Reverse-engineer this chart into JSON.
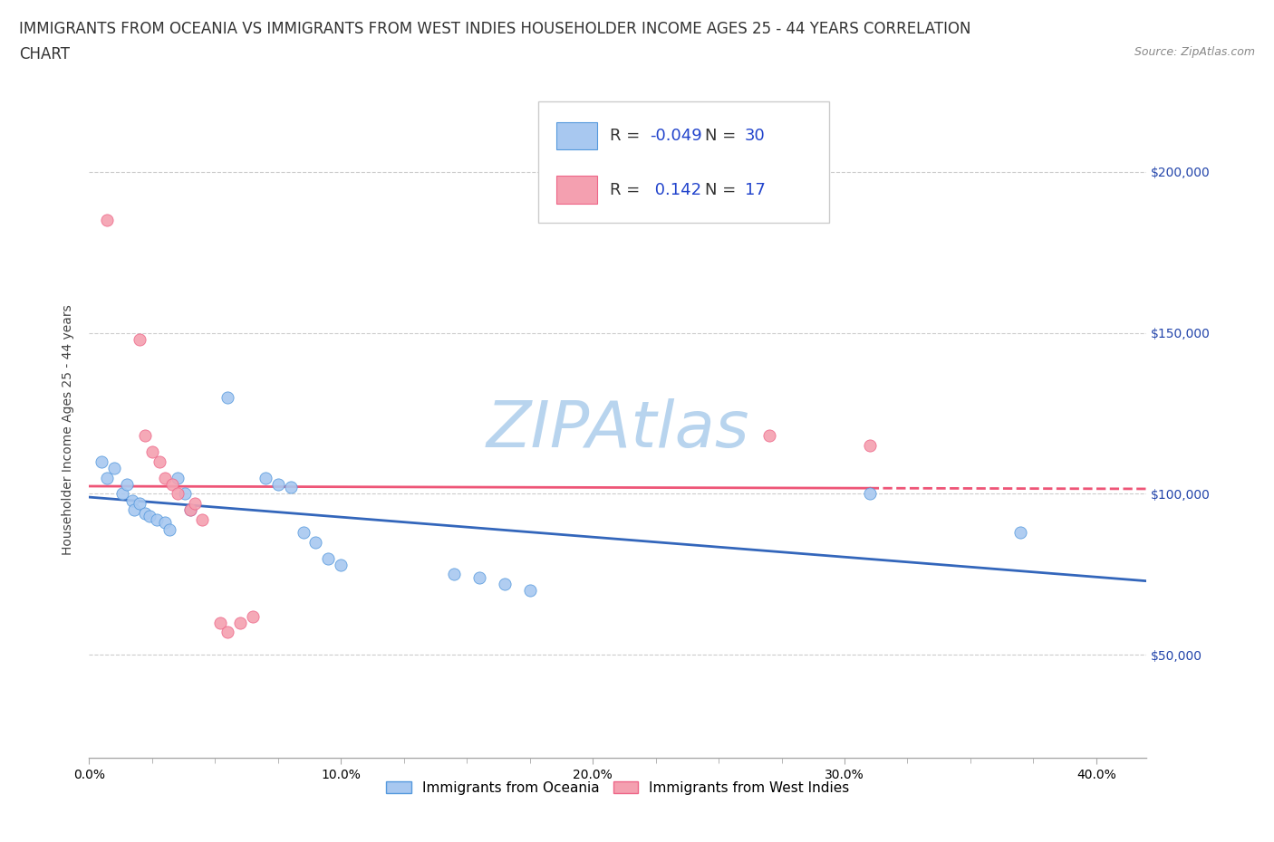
{
  "title_line1": "IMMIGRANTS FROM OCEANIA VS IMMIGRANTS FROM WEST INDIES HOUSEHOLDER INCOME AGES 25 - 44 YEARS CORRELATION",
  "title_line2": "CHART",
  "source_text": "Source: ZipAtlas.com",
  "ylabel": "Householder Income Ages 25 - 44 years",
  "xlabel_ticks": [
    "0.0%",
    "10.0%",
    "20.0%",
    "30.0%",
    "40.0%"
  ],
  "ytick_labels": [
    "$50,000",
    "$100,000",
    "$150,000",
    "$200,000"
  ],
  "ytick_values": [
    50000,
    100000,
    150000,
    200000
  ],
  "xlim": [
    0.0,
    0.42
  ],
  "ylim": [
    18000,
    222000
  ],
  "oceania_x": [
    0.005,
    0.007,
    0.01,
    0.013,
    0.015,
    0.017,
    0.018,
    0.02,
    0.022,
    0.024,
    0.027,
    0.03,
    0.032,
    0.035,
    0.038,
    0.04,
    0.055,
    0.07,
    0.075,
    0.08,
    0.085,
    0.09,
    0.095,
    0.1,
    0.145,
    0.155,
    0.165,
    0.175,
    0.31,
    0.37
  ],
  "oceania_y": [
    110000,
    105000,
    108000,
    100000,
    103000,
    98000,
    95000,
    97000,
    94000,
    93000,
    92000,
    91000,
    89000,
    105000,
    100000,
    95000,
    130000,
    105000,
    103000,
    102000,
    88000,
    85000,
    80000,
    78000,
    75000,
    74000,
    72000,
    70000,
    100000,
    88000
  ],
  "westindies_x": [
    0.007,
    0.02,
    0.022,
    0.025,
    0.028,
    0.03,
    0.033,
    0.035,
    0.04,
    0.042,
    0.045,
    0.052,
    0.055,
    0.06,
    0.065,
    0.27,
    0.31
  ],
  "westindies_y": [
    185000,
    148000,
    118000,
    113000,
    110000,
    105000,
    103000,
    100000,
    95000,
    97000,
    92000,
    60000,
    57000,
    60000,
    62000,
    118000,
    115000
  ],
  "oceania_color": "#a8c8f0",
  "westindies_color": "#f4a0b0",
  "oceania_edge_color": "#5599dd",
  "westindies_edge_color": "#ee6688",
  "trend_oceania_color": "#3366bb",
  "trend_westindies_color": "#ee5577",
  "R_oceania": -0.049,
  "N_oceania": 30,
  "R_westindies": 0.142,
  "N_westindies": 17,
  "legend_label_oceania": "Immigrants from Oceania",
  "legend_label_westindies": "Immigrants from West Indies",
  "background_color": "#ffffff",
  "grid_color": "#cccccc",
  "watermark_color": "#b8d4ee",
  "title_fontsize": 12,
  "axis_label_fontsize": 10,
  "tick_fontsize": 10,
  "legend_fontsize": 13,
  "source_fontsize": 9,
  "right_tick_color": "#2244aa"
}
